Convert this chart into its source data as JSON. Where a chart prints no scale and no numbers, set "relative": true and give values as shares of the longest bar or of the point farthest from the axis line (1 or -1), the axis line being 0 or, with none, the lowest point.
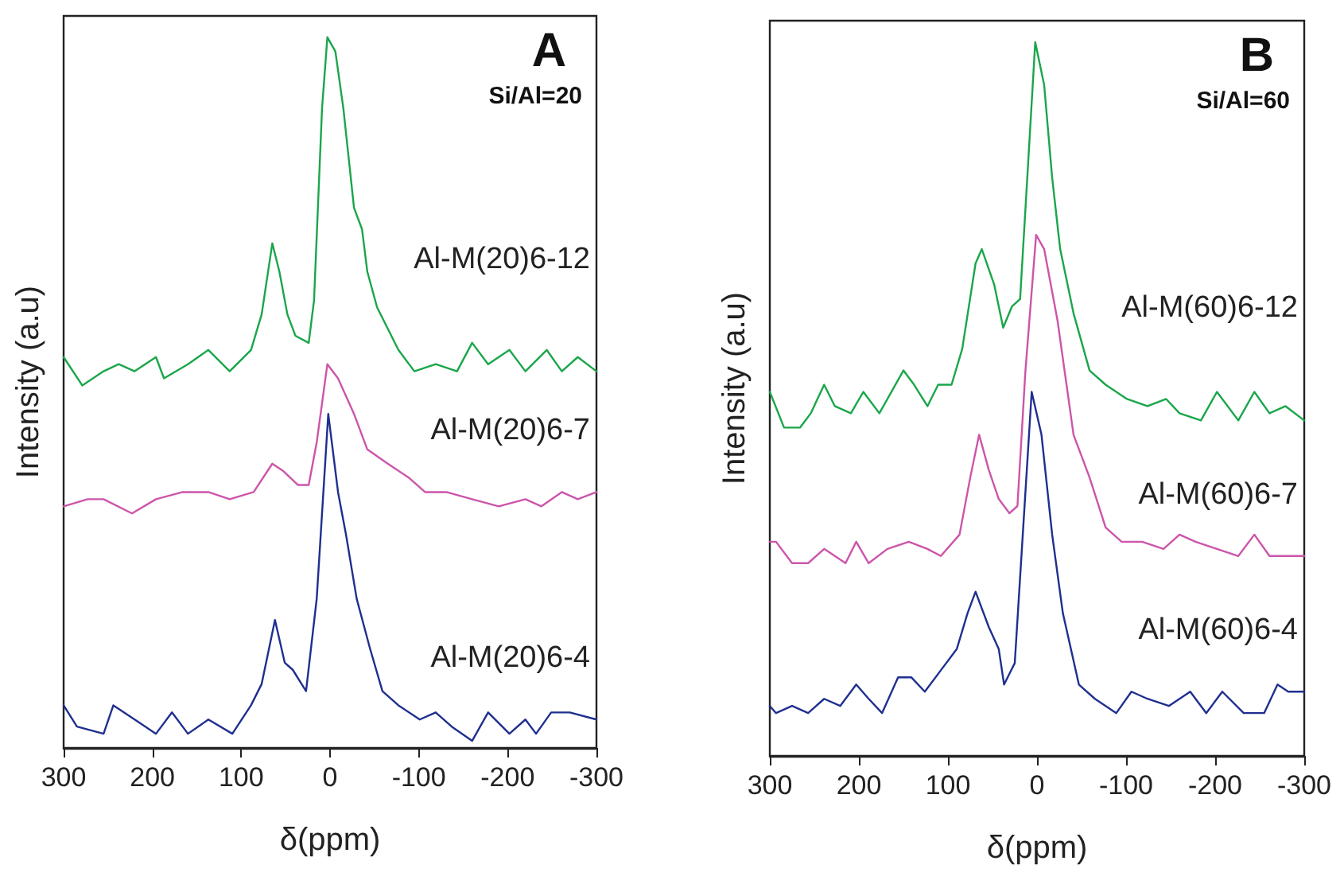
{
  "chart_data": [
    {
      "type": "line",
      "title": "A",
      "subtitle": "Si/Al=20",
      "xlabel": "δ(ppm)",
      "ylabel": "Intensity (a.u)",
      "relative": true,
      "xlim": [
        300,
        -300
      ],
      "xticks": [
        300,
        200,
        100,
        0,
        -100,
        -200,
        -300
      ],
      "grid": false,
      "legend": false,
      "marker": "none",
      "line_style": "solid",
      "series": [
        {
          "name": "Al-M(20)6-12",
          "color": "#1aa64a",
          "x": [
            300,
            279,
            255,
            238,
            220,
            196,
            187,
            160,
            137,
            113,
            89,
            77,
            65,
            57,
            48,
            39,
            24,
            18,
            9,
            3,
            -6,
            -15,
            -27,
            -36,
            -42,
            -53,
            -65,
            -77,
            -95,
            -119,
            -143,
            -160,
            -178,
            -202,
            -220,
            -244,
            -261,
            -279,
            -300
          ],
          "values": [
            0.55,
            0.51,
            0.53,
            0.54,
            0.53,
            0.55,
            0.52,
            0.54,
            0.56,
            0.53,
            0.56,
            0.61,
            0.71,
            0.67,
            0.61,
            0.58,
            0.57,
            0.63,
            0.9,
            1,
            0.98,
            0.9,
            0.76,
            0.73,
            0.67,
            0.62,
            0.59,
            0.56,
            0.53,
            0.54,
            0.53,
            0.57,
            0.54,
            0.56,
            0.53,
            0.56,
            0.53,
            0.55,
            0.53
          ]
        },
        {
          "name": "Al-M(20)6-7",
          "color": "#cc55aa",
          "x": [
            300,
            273,
            255,
            223,
            196,
            166,
            137,
            113,
            86,
            65,
            53,
            36,
            24,
            15,
            3,
            -9,
            -27,
            -42,
            -65,
            -89,
            -107,
            -131,
            -160,
            -190,
            -220,
            -238,
            -261,
            -279,
            -300
          ],
          "values": [
            0.34,
            0.35,
            0.35,
            0.33,
            0.35,
            0.36,
            0.36,
            0.35,
            0.36,
            0.4,
            0.39,
            0.37,
            0.37,
            0.43,
            0.54,
            0.52,
            0.47,
            0.42,
            0.4,
            0.38,
            0.36,
            0.36,
            0.35,
            0.34,
            0.35,
            0.34,
            0.36,
            0.35,
            0.36
          ]
        },
        {
          "name": "Al-M(20)6-4",
          "color": "#1f2f8f",
          "x": [
            300,
            285,
            255,
            244,
            220,
            196,
            178,
            160,
            137,
            110,
            89,
            77,
            62,
            51,
            42,
            27,
            15,
            2,
            -9,
            -18,
            -30,
            -45,
            -59,
            -77,
            -101,
            -119,
            -137,
            -160,
            -178,
            -202,
            -220,
            -232,
            -249,
            -270,
            -300
          ],
          "values": [
            0.06,
            0.03,
            0.02,
            0.06,
            0.04,
            0.02,
            0.05,
            0.02,
            0.04,
            0.02,
            0.06,
            0.09,
            0.18,
            0.12,
            0.11,
            0.08,
            0.21,
            0.47,
            0.36,
            0.3,
            0.21,
            0.14,
            0.08,
            0.06,
            0.04,
            0.05,
            0.03,
            0.01,
            0.05,
            0.02,
            0.04,
            0.02,
            0.05,
            0.05,
            0.04
          ]
        }
      ]
    },
    {
      "type": "line",
      "title": "B",
      "subtitle": "Si/Al=60",
      "xlabel": "δ(ppm)",
      "ylabel": "Intensity (a.u)",
      "relative": true,
      "xlim": [
        300,
        -300
      ],
      "xticks": [
        300,
        200,
        100,
        0,
        -100,
        -200,
        -300
      ],
      "grid": false,
      "legend": false,
      "marker": "none",
      "line_style": "solid",
      "series": [
        {
          "name": "Al-M(60)6-12",
          "color": "#1aa64a",
          "x": [
            300,
            284,
            266,
            254,
            239,
            227,
            209,
            195,
            177,
            150,
            138,
            123,
            111,
            96,
            84,
            69,
            62,
            48,
            38,
            28,
            19,
            10,
            2,
            -8,
            -17,
            -26,
            -41,
            -59,
            -77,
            -101,
            -124,
            -145,
            -160,
            -184,
            -202,
            -226,
            -244,
            -261,
            -279,
            -300
          ],
          "values": [
            0.51,
            0.46,
            0.46,
            0.48,
            0.52,
            0.49,
            0.48,
            0.51,
            0.48,
            0.54,
            0.52,
            0.49,
            0.52,
            0.52,
            0.57,
            0.69,
            0.71,
            0.66,
            0.6,
            0.63,
            0.64,
            0.83,
            1,
            0.94,
            0.81,
            0.71,
            0.62,
            0.54,
            0.52,
            0.5,
            0.49,
            0.5,
            0.48,
            0.47,
            0.51,
            0.47,
            0.51,
            0.48,
            0.49,
            0.47
          ]
        },
        {
          "name": "Al-M(60)6-7",
          "color": "#cc55aa",
          "x": [
            300,
            293,
            275,
            257,
            239,
            215,
            203,
            189,
            168,
            144,
            123,
            108,
            87,
            75,
            65,
            54,
            43,
            31,
            22,
            13,
            1,
            -8,
            -23,
            -41,
            -59,
            -77,
            -95,
            -118,
            -142,
            -160,
            -178,
            -202,
            -226,
            -244,
            -261,
            -279,
            -300
          ],
          "values": [
            0.3,
            0.3,
            0.27,
            0.27,
            0.29,
            0.27,
            0.3,
            0.27,
            0.29,
            0.3,
            0.29,
            0.28,
            0.31,
            0.39,
            0.45,
            0.4,
            0.36,
            0.34,
            0.35,
            0.54,
            0.73,
            0.71,
            0.61,
            0.45,
            0.39,
            0.32,
            0.3,
            0.3,
            0.29,
            0.31,
            0.3,
            0.29,
            0.28,
            0.31,
            0.28,
            0.28,
            0.28
          ]
        },
        {
          "name": "Al-M(60)6-4",
          "color": "#1f2f8f",
          "x": [
            300,
            293,
            275,
            257,
            239,
            221,
            203,
            189,
            174,
            156,
            141,
            126,
            108,
            90,
            78,
            69,
            54,
            43,
            37,
            25,
            16,
            6,
            -5,
            -17,
            -29,
            -47,
            -65,
            -89,
            -106,
            -124,
            -148,
            -172,
            -190,
            -208,
            -232,
            -255,
            -270,
            -282,
            -300
          ],
          "values": [
            0.07,
            0.06,
            0.07,
            0.06,
            0.08,
            0.07,
            0.1,
            0.08,
            0.06,
            0.11,
            0.11,
            0.09,
            0.12,
            0.15,
            0.2,
            0.23,
            0.18,
            0.15,
            0.1,
            0.13,
            0.31,
            0.51,
            0.45,
            0.31,
            0.2,
            0.1,
            0.08,
            0.06,
            0.09,
            0.08,
            0.07,
            0.09,
            0.06,
            0.09,
            0.06,
            0.06,
            0.1,
            0.09,
            0.09
          ]
        }
      ]
    }
  ]
}
